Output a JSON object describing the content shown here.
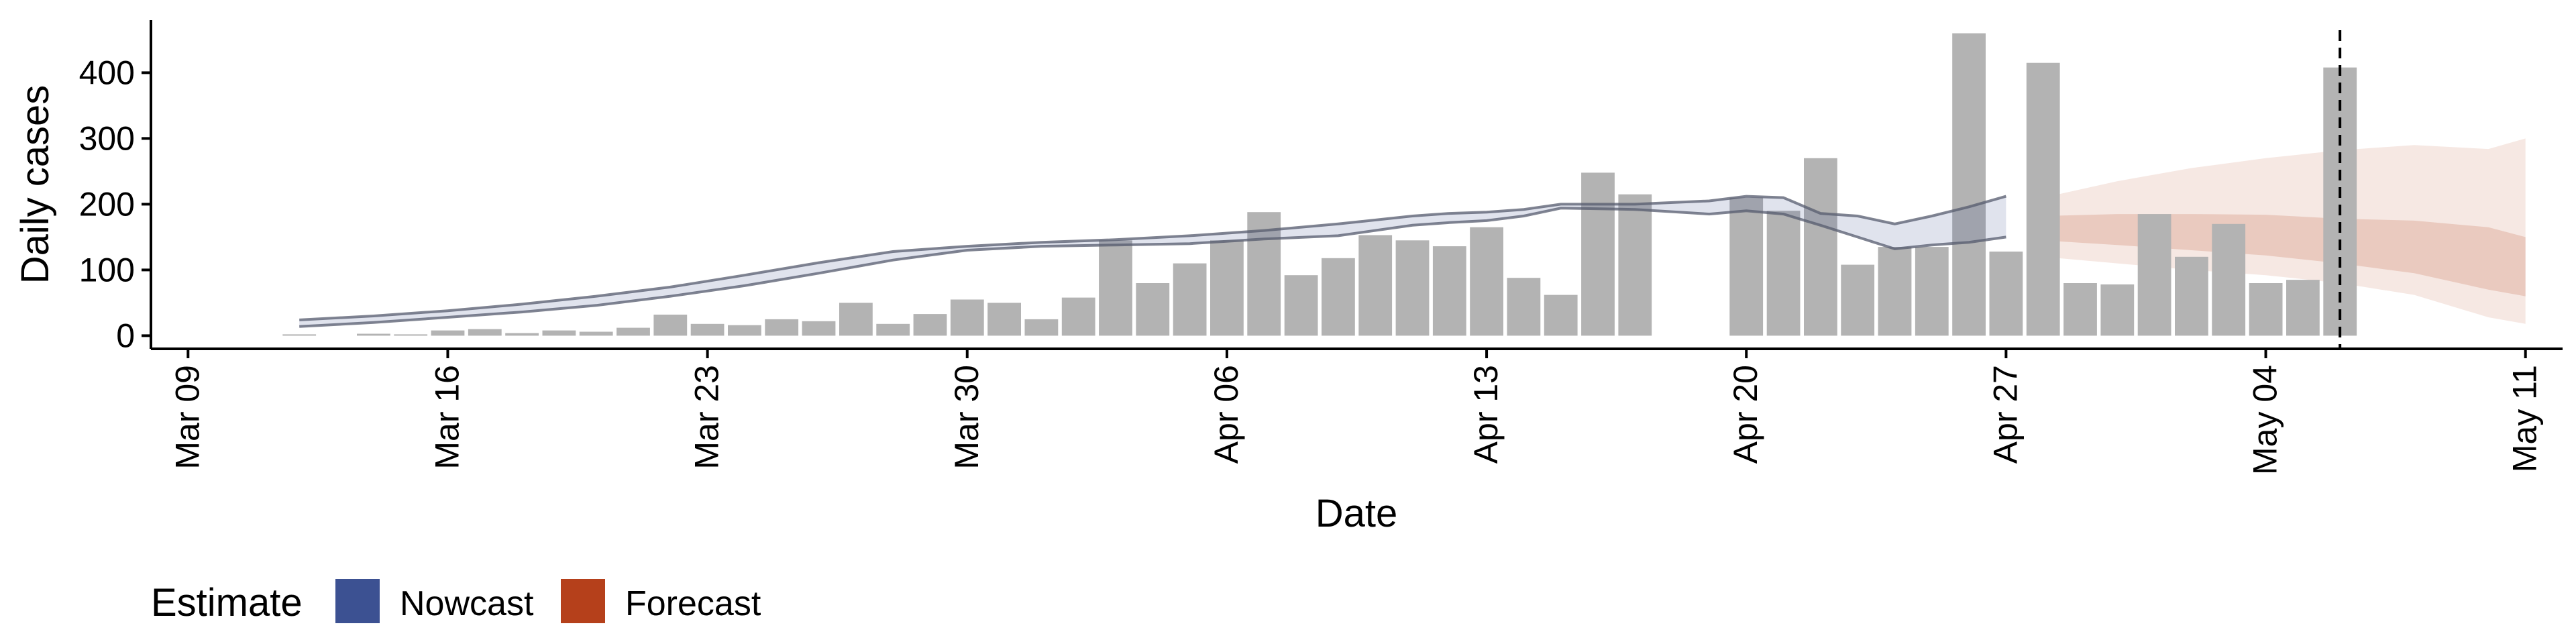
{
  "chart_data": {
    "type": "bar",
    "title": "",
    "xlabel": "Date",
    "ylabel": "Daily cases",
    "x_domain": [
      "2020-03-08",
      "2020-05-12"
    ],
    "ylim": [
      -20,
      480
    ],
    "x_ticks": [
      {
        "date": "2020-03-09",
        "label": "Mar 09"
      },
      {
        "date": "2020-03-16",
        "label": "Mar 16"
      },
      {
        "date": "2020-03-23",
        "label": "Mar 23"
      },
      {
        "date": "2020-03-30",
        "label": "Mar 30"
      },
      {
        "date": "2020-04-06",
        "label": "Apr 06"
      },
      {
        "date": "2020-04-13",
        "label": "Apr 13"
      },
      {
        "date": "2020-04-20",
        "label": "Apr 20"
      },
      {
        "date": "2020-04-27",
        "label": "Apr 27"
      },
      {
        "date": "2020-05-04",
        "label": "May 04"
      },
      {
        "date": "2020-05-11",
        "label": "May 11"
      }
    ],
    "y_ticks": [
      0,
      100,
      200,
      300,
      400
    ],
    "grid": false,
    "bars": {
      "color": "#b3b3b3",
      "dates": [
        "2020-03-12",
        "2020-03-13",
        "2020-03-14",
        "2020-03-15",
        "2020-03-16",
        "2020-03-17",
        "2020-03-18",
        "2020-03-19",
        "2020-03-20",
        "2020-03-21",
        "2020-03-22",
        "2020-03-23",
        "2020-03-24",
        "2020-03-25",
        "2020-03-26",
        "2020-03-27",
        "2020-03-28",
        "2020-03-29",
        "2020-03-30",
        "2020-03-31",
        "2020-04-01",
        "2020-04-02",
        "2020-04-03",
        "2020-04-04",
        "2020-04-05",
        "2020-04-06",
        "2020-04-07",
        "2020-04-08",
        "2020-04-09",
        "2020-04-10",
        "2020-04-11",
        "2020-04-12",
        "2020-04-13",
        "2020-04-14",
        "2020-04-15",
        "2020-04-16",
        "2020-04-17",
        "2020-04-18",
        "2020-04-19",
        "2020-04-20",
        "2020-04-21",
        "2020-04-22",
        "2020-04-23",
        "2020-04-24",
        "2020-04-25",
        "2020-04-26",
        "2020-04-27",
        "2020-04-28",
        "2020-04-29",
        "2020-04-30",
        "2020-05-01",
        "2020-05-02",
        "2020-05-03",
        "2020-05-04",
        "2020-05-05",
        "2020-05-06"
      ],
      "values": [
        2,
        0,
        3,
        2,
        8,
        10,
        4,
        8,
        6,
        12,
        32,
        18,
        16,
        25,
        22,
        50,
        18,
        33,
        55,
        50,
        25,
        58,
        145,
        80,
        110,
        145,
        188,
        92,
        118,
        153,
        145,
        136,
        165,
        88,
        62,
        248,
        215,
        0,
        0,
        210,
        190,
        270,
        108,
        135,
        135,
        460,
        128,
        415,
        80,
        78,
        185,
        120,
        170,
        80,
        85,
        408
      ]
    },
    "series": [
      {
        "name": "Nowcast",
        "color": "#3c5192",
        "dates": [
          "2020-03-12",
          "2020-03-14",
          "2020-03-16",
          "2020-03-18",
          "2020-03-20",
          "2020-03-22",
          "2020-03-24",
          "2020-03-26",
          "2020-03-28",
          "2020-03-30",
          "2020-04-01",
          "2020-04-03",
          "2020-04-05",
          "2020-04-07",
          "2020-04-09",
          "2020-04-11",
          "2020-04-12",
          "2020-04-13",
          "2020-04-14",
          "2020-04-15",
          "2020-04-17",
          "2020-04-19",
          "2020-04-20",
          "2020-04-21",
          "2020-04-22",
          "2020-04-23",
          "2020-04-24",
          "2020-04-25",
          "2020-04-26",
          "2020-04-27"
        ],
        "lower": [
          14,
          20,
          28,
          36,
          46,
          60,
          76,
          95,
          115,
          130,
          136,
          138,
          140,
          147,
          152,
          168,
          172,
          175,
          182,
          194,
          192,
          185,
          190,
          185,
          168,
          150,
          132,
          138,
          142,
          150
        ],
        "upper": [
          24,
          30,
          38,
          48,
          60,
          74,
          92,
          111,
          128,
          136,
          142,
          146,
          152,
          160,
          170,
          182,
          186,
          188,
          192,
          200,
          200,
          205,
          212,
          210,
          186,
          182,
          170,
          182,
          196,
          212
        ]
      },
      {
        "name": "Forecast",
        "color": "#b5401b",
        "dates": [
          "2020-04-28",
          "2020-04-30",
          "2020-05-02",
          "2020-05-04",
          "2020-05-06",
          "2020-05-08",
          "2020-05-10",
          "2020-05-11"
        ],
        "lower_90": [
          120,
          110,
          100,
          92,
          80,
          62,
          28,
          18
        ],
        "upper_90": [
          210,
          235,
          255,
          270,
          282,
          290,
          284,
          300
        ],
        "lower_50": [
          145,
          138,
          130,
          122,
          110,
          95,
          70,
          60
        ],
        "upper_50": [
          182,
          185,
          185,
          184,
          178,
          175,
          165,
          150
        ]
      }
    ],
    "vline": {
      "date": "2020-05-06",
      "style": "dashed"
    },
    "legend": {
      "title": "Estimate",
      "position": "bottom-left",
      "items": [
        {
          "label": "Nowcast",
          "color": "#3c5192"
        },
        {
          "label": "Forecast",
          "color": "#b5401b"
        }
      ]
    }
  }
}
